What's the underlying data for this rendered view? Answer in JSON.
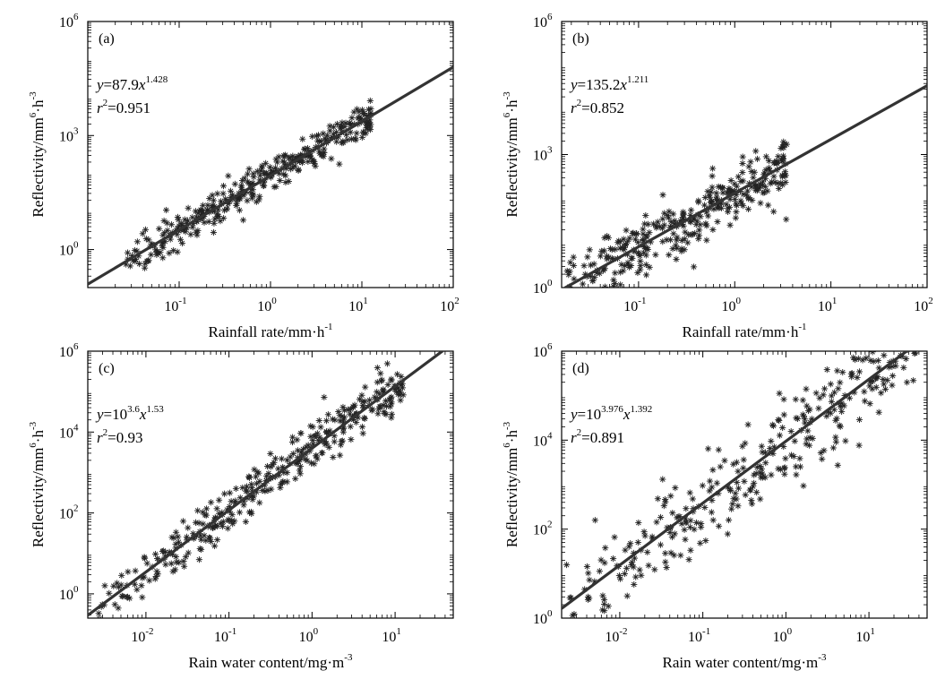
{
  "colors": {
    "ink": "#000000",
    "fit": "#333333",
    "points": "#222222",
    "background": "#ffffff"
  },
  "chart_data": [
    {
      "panel": "(a)",
      "type": "scatter",
      "xlabel": "Rainfall rate/mm·h",
      "xlabel_sup": "-1",
      "ylabel": "Reflectivity/mm",
      "ylabel_mid": "6",
      "ylabel_after": "·h",
      "ylabel_sup": "-3",
      "xscale": "log",
      "yscale": "log",
      "xlim_exp": [
        -2,
        2
      ],
      "ylim_exp": [
        -1,
        6
      ],
      "xticks": [
        {
          "base": "10",
          "exp": "-1",
          "value": -1
        },
        {
          "base": "10",
          "exp": "0",
          "value": 0
        },
        {
          "base": "10",
          "exp": "1",
          "value": 1
        },
        {
          "base": "10",
          "exp": "2",
          "value": 2
        }
      ],
      "yticks": [
        {
          "base": "10",
          "exp": "0",
          "value": 0
        },
        {
          "base": "10",
          "exp": "3",
          "value": 3
        },
        {
          "base": "10",
          "exp": "6",
          "value": 6
        }
      ],
      "fit": {
        "prefix": "y",
        "coef": "=87.9",
        "var": "x",
        "exp": "1.428",
        "a_log": 1.944,
        "b": 1.428
      },
      "r2": {
        "prefix": "r",
        "sup": "2",
        "value": "=0.951"
      },
      "scatter_range_log": [
        -1.6,
        1.1
      ],
      "scatter_spread": 0.22,
      "scatter_count": 360,
      "grid": false,
      "legend": "none"
    },
    {
      "panel": "(b)",
      "type": "scatter",
      "xlabel": "Rainfall rate/mm·h",
      "xlabel_sup": "-1",
      "ylabel": "Reflectivity/mm",
      "ylabel_mid": "6",
      "ylabel_after": "·h",
      "ylabel_sup": "-3",
      "xscale": "log",
      "yscale": "log",
      "xlim_exp": [
        -1.8,
        2
      ],
      "ylim_exp": [
        0,
        6
      ],
      "xticks": [
        {
          "base": "10",
          "exp": "-1",
          "value": -1
        },
        {
          "base": "10",
          "exp": "0",
          "value": 0
        },
        {
          "base": "10",
          "exp": "1",
          "value": 1
        },
        {
          "base": "10",
          "exp": "2",
          "value": 2
        }
      ],
      "yticks": [
        {
          "base": "10",
          "exp": "0",
          "value": 0
        },
        {
          "base": "10",
          "exp": "3",
          "value": 3
        },
        {
          "base": "10",
          "exp": "6",
          "value": 6
        }
      ],
      "fit": {
        "prefix": "y",
        "coef": "=135.2",
        "var": "x",
        "exp": "1.211",
        "a_log": 2.131,
        "b": 1.211
      },
      "r2": {
        "prefix": "r",
        "sup": "2",
        "value": "=0.852"
      },
      "scatter_range_log": [
        -1.75,
        0.55
      ],
      "scatter_spread": 0.35,
      "scatter_count": 340,
      "grid": false,
      "legend": "none"
    },
    {
      "panel": "(c)",
      "type": "scatter",
      "xlabel": "Rain water content/mg·m",
      "xlabel_sup": "-3",
      "ylabel": "Reflectivity/mm",
      "ylabel_mid": "6",
      "ylabel_after": "·h",
      "ylabel_sup": "-3",
      "xscale": "log",
      "yscale": "log",
      "xlim_exp": [
        -2.7,
        1.7
      ],
      "ylim_exp": [
        -0.6,
        6
      ],
      "xticks": [
        {
          "base": "10",
          "exp": "-2",
          "value": -2
        },
        {
          "base": "10",
          "exp": "-1",
          "value": -1
        },
        {
          "base": "10",
          "exp": "0",
          "value": 0
        },
        {
          "base": "10",
          "exp": "1",
          "value": 1
        }
      ],
      "yticks": [
        {
          "base": "10",
          "exp": "0",
          "value": 0
        },
        {
          "base": "10",
          "exp": "2",
          "value": 2
        },
        {
          "base": "10",
          "exp": "4",
          "value": 4
        },
        {
          "base": "10",
          "exp": "6",
          "value": 6
        }
      ],
      "fit": {
        "prefix": "y",
        "coef": "=10",
        "coef_sup": "3.6",
        "var": "x",
        "exp": "1.53",
        "a_log": 3.6,
        "b": 1.53
      },
      "r2": {
        "prefix": "r",
        "sup": "2",
        "value": "=0.93"
      },
      "scatter_range_log": [
        -2.6,
        1.1
      ],
      "scatter_spread": 0.3,
      "scatter_count": 360,
      "grid": false,
      "legend": "none"
    },
    {
      "panel": "(d)",
      "type": "scatter",
      "xlabel": "Rain water content/mg·m",
      "xlabel_sup": "-3",
      "ylabel": "Reflectivity/mm",
      "ylabel_mid": "6",
      "ylabel_after": "·h",
      "ylabel_sup": "-3",
      "xscale": "log",
      "yscale": "log",
      "xlim_exp": [
        -2.7,
        1.7
      ],
      "ylim_exp": [
        0,
        6
      ],
      "xticks": [
        {
          "base": "10",
          "exp": "-2",
          "value": -2
        },
        {
          "base": "10",
          "exp": "-1",
          "value": -1
        },
        {
          "base": "10",
          "exp": "0",
          "value": 0
        },
        {
          "base": "10",
          "exp": "1",
          "value": 1
        }
      ],
      "yticks": [
        {
          "base": "10",
          "exp": "0",
          "value": 0
        },
        {
          "base": "10",
          "exp": "2",
          "value": 2
        },
        {
          "base": "10",
          "exp": "4",
          "value": 4
        },
        {
          "base": "10",
          "exp": "6",
          "value": 6
        }
      ],
      "fit": {
        "prefix": "y",
        "coef": "=10",
        "coef_sup": "3.976",
        "var": "x",
        "exp": "1.392",
        "a_log": 3.976,
        "b": 1.392
      },
      "r2": {
        "prefix": "r",
        "sup": "2",
        "value": "=0.891"
      },
      "scatter_range_log": [
        -2.65,
        1.65
      ],
      "scatter_spread": 0.55,
      "scatter_count": 340,
      "grid": false,
      "legend": "none"
    }
  ]
}
